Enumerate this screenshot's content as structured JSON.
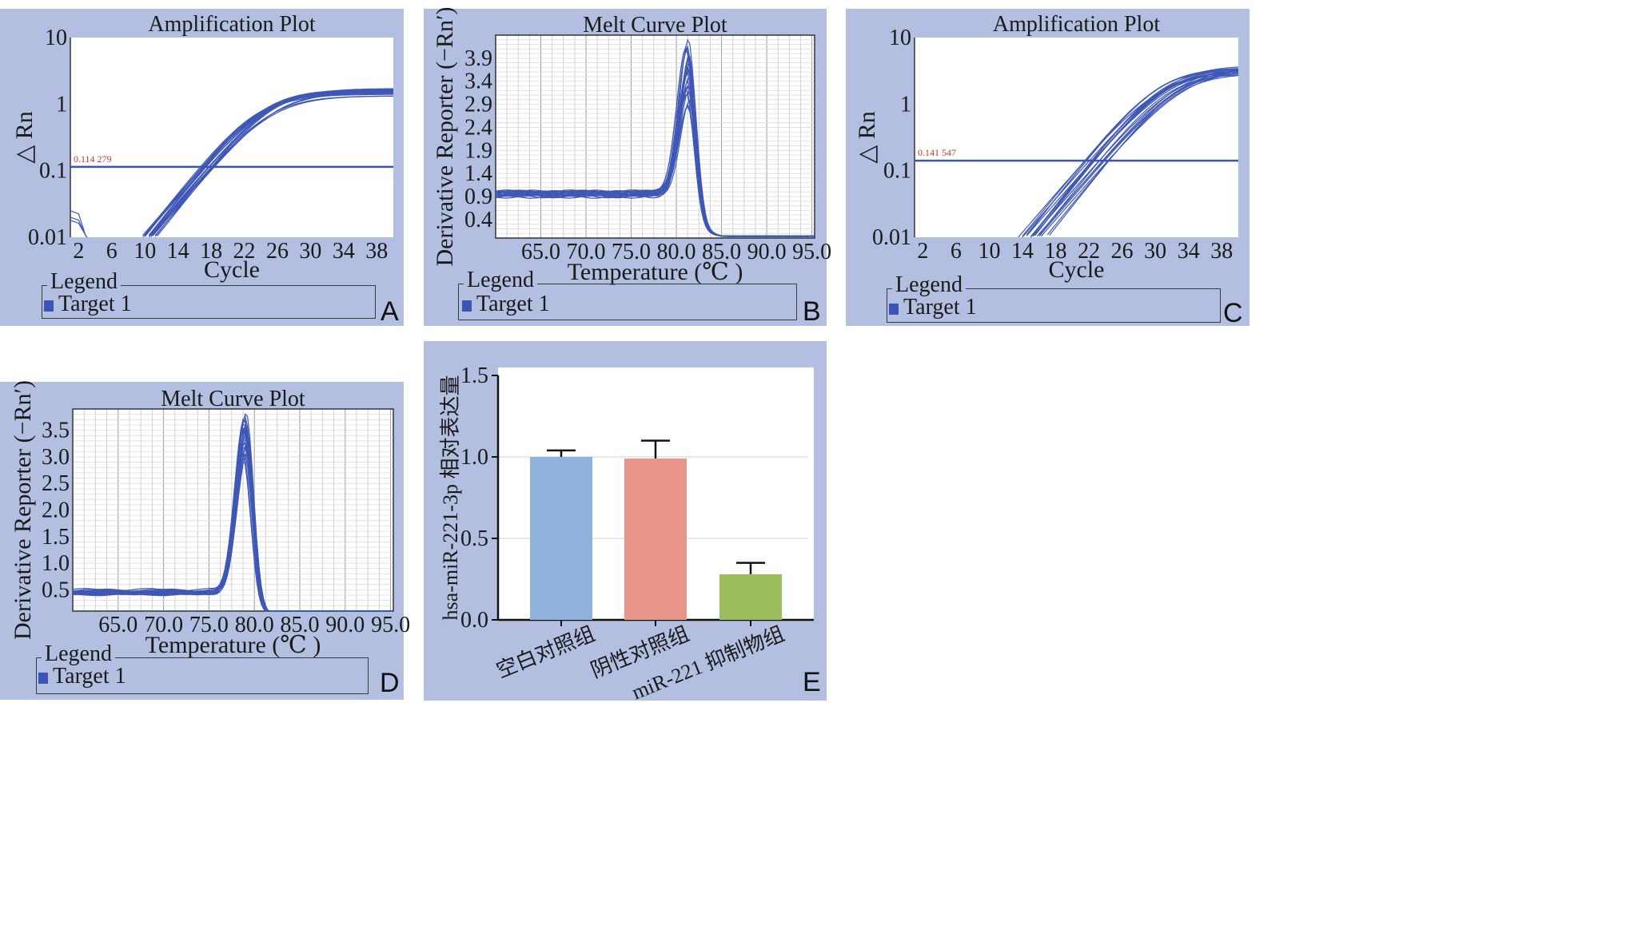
{
  "panels": {
    "A": {
      "letter": "A",
      "legend_title": "Legend",
      "legend_item": "Target 1"
    },
    "B": {
      "letter": "B",
      "legend_title": "Legend",
      "legend_item": "Target 1"
    },
    "C": {
      "letter": "C",
      "legend_title": "Legend",
      "legend_item": "Target 1"
    },
    "D": {
      "letter": "D",
      "legend_title": "Legend",
      "legend_item": "Target 1"
    },
    "E": {
      "letter": "E"
    }
  },
  "chart_data": [
    {
      "id": "A",
      "type": "line",
      "title": "Amplification Plot",
      "xlabel": "Cycle",
      "ylabel": "△ Rn",
      "yscale": "log",
      "xlim": [
        1,
        40
      ],
      "ylim": [
        0.01,
        10
      ],
      "x_ticks": [
        "2",
        "6",
        "10",
        "14",
        "18",
        "22",
        "26",
        "30",
        "34",
        "38"
      ],
      "y_ticks": [
        "10",
        "1",
        "0.1",
        "0.01"
      ],
      "threshold": {
        "value": 0.114279,
        "label": "0.114 279"
      },
      "series_count": 20,
      "plateau": 1.6,
      "ct_range": [
        16.5,
        18.5
      ],
      "legend": [
        "Target 1"
      ],
      "color": "#3f57b5"
    },
    {
      "id": "B",
      "type": "line",
      "title": "Melt Curve Plot",
      "xlabel": "Temperature (℃ )",
      "ylabel": "Derivative Reporter (−Rn′)",
      "xlim": [
        60,
        95.3
      ],
      "ylim": [
        0,
        4.4
      ],
      "x_ticks": [
        "65.0",
        "70.0",
        "75.0",
        "80.0",
        "85.0",
        "90.0",
        "95.0"
      ],
      "y_ticks": [
        "3.9",
        "3.4",
        "2.9",
        "2.4",
        "1.9",
        "1.4",
        "0.9",
        "0.4"
      ],
      "peak_temperature": 81.3,
      "peak_range": [
        2.9,
        4.3
      ],
      "baseline": 0.95,
      "legend": [
        "Target 1"
      ],
      "color": "#3f57b5"
    },
    {
      "id": "C",
      "type": "line",
      "title": "Amplification Plot",
      "xlabel": "Cycle",
      "ylabel": "△ Rn",
      "yscale": "log",
      "xlim": [
        1,
        40
      ],
      "ylim": [
        0.01,
        10
      ],
      "x_ticks": [
        "2",
        "6",
        "10",
        "14",
        "18",
        "22",
        "26",
        "30",
        "34",
        "38"
      ],
      "y_ticks": [
        "10",
        "1",
        "0.1",
        "0.01"
      ],
      "threshold": {
        "value": 0.141547,
        "label": "0.141 547"
      },
      "series_count": 20,
      "plateau": 3.5,
      "ct_range": [
        21.5,
        24.5
      ],
      "legend": [
        "Target 1"
      ],
      "color": "#3f57b5"
    },
    {
      "id": "D",
      "type": "line",
      "title": "Melt Curve Plot",
      "xlabel": "Temperature (℃ )",
      "ylabel": "Derivative Reporter (−Rn′)",
      "xlim": [
        60,
        95.3
      ],
      "ylim": [
        0.1,
        3.9
      ],
      "x_ticks": [
        "65.0",
        "70.0",
        "75.0",
        "80.0",
        "85.0",
        "90.0",
        "95.0"
      ],
      "y_ticks": [
        "3.5",
        "3.0",
        "2.5",
        "2.0",
        "1.5",
        "1.0",
        "0.5"
      ],
      "peak_temperature": 79,
      "peak_range": [
        3.0,
        3.8
      ],
      "baseline": 0.45,
      "legend": [
        "Target 1"
      ],
      "color": "#3f57b5"
    },
    {
      "id": "E",
      "type": "bar",
      "ylabel": "hsa-miR-221-3p 相对表达量",
      "ylim": [
        0,
        1.5
      ],
      "y_ticks": [
        "0.0",
        "0.5",
        "1.0",
        "1.5"
      ],
      "categories": [
        "空白对照组",
        "阴性对照组",
        "miR-221 抑制物组"
      ],
      "values": [
        1.0,
        0.99,
        0.28
      ],
      "errors": [
        0.04,
        0.11,
        0.07
      ],
      "colors": [
        "#8fb3dd",
        "#e8958a",
        "#9dbd5d"
      ]
    }
  ]
}
